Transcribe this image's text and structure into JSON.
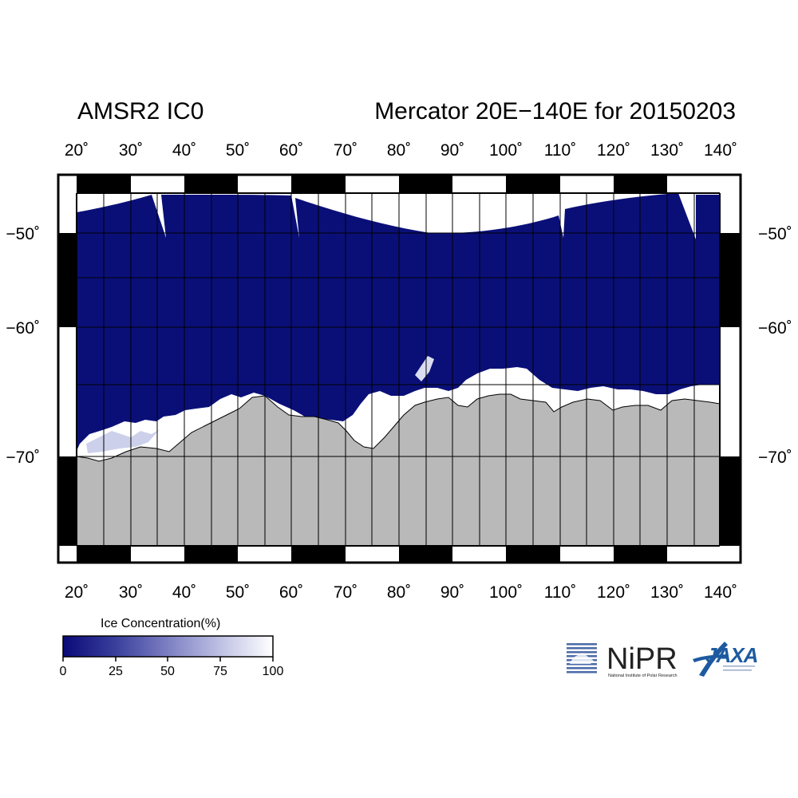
{
  "title_left": "AMSR2 IC0",
  "title_right": "Mercator 20E−140E for 20150203",
  "lon_ticks": [
    {
      "value": 20,
      "label": "20˚"
    },
    {
      "value": 30,
      "label": "30˚"
    },
    {
      "value": 40,
      "label": "40˚"
    },
    {
      "value": 50,
      "label": "50˚"
    },
    {
      "value": 60,
      "label": "60˚"
    },
    {
      "value": 70,
      "label": "70˚"
    },
    {
      "value": 80,
      "label": "80˚"
    },
    {
      "value": 90,
      "label": "90˚"
    },
    {
      "value": 100,
      "label": "100˚"
    },
    {
      "value": 110,
      "label": "110˚"
    },
    {
      "value": 120,
      "label": "120˚"
    },
    {
      "value": 130,
      "label": "130˚"
    },
    {
      "value": 140,
      "label": "140˚"
    }
  ],
  "lat_ticks": [
    {
      "value": -50,
      "label": "−50˚"
    },
    {
      "value": -60,
      "label": "−60˚"
    },
    {
      "value": -70,
      "label": "−70˚"
    }
  ],
  "colorbar": {
    "title": "Ice Concentration(%)",
    "ticks": [
      "0",
      "25",
      "50",
      "75",
      "100"
    ],
    "color_low": "#0a0a78",
    "color_high": "#ffffff"
  },
  "colors": {
    "ocean": "#0a0f78",
    "land": "#b9b9b9",
    "ice": "#ffffff",
    "no_data": "#ffffff"
  },
  "logos": {
    "nipr_name": "NiPR",
    "nipr_sub": "National Institute of Polar Research",
    "jaxa_name": "JAXA"
  }
}
